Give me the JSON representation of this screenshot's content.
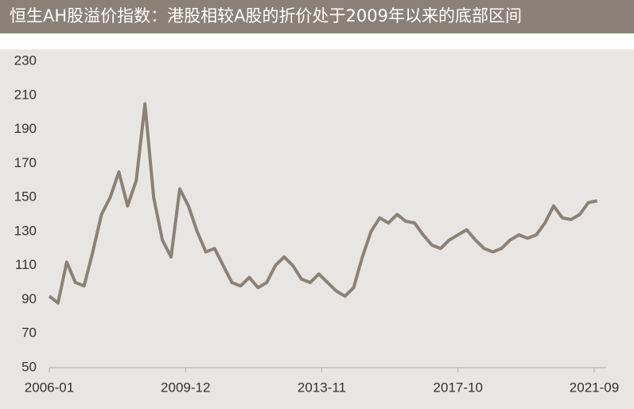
{
  "chart_data": {
    "type": "line",
    "title": "恒生AH股溢价指数：港股相较A股的折价处于2009年以来的底部区间",
    "x": [
      "2006-01",
      "2006-04",
      "2006-07",
      "2006-10",
      "2007-01",
      "2007-04",
      "2007-07",
      "2007-10",
      "2008-01",
      "2008-04",
      "2008-07",
      "2008-10",
      "2009-01",
      "2009-04",
      "2009-07",
      "2009-10",
      "2010-01",
      "2010-04",
      "2010-07",
      "2010-10",
      "2011-01",
      "2011-04",
      "2011-07",
      "2011-10",
      "2012-01",
      "2012-04",
      "2012-07",
      "2012-10",
      "2013-01",
      "2013-04",
      "2013-07",
      "2013-10",
      "2014-01",
      "2014-04",
      "2014-07",
      "2014-10",
      "2015-01",
      "2015-04",
      "2015-07",
      "2015-10",
      "2016-01",
      "2016-04",
      "2016-07",
      "2016-10",
      "2017-01",
      "2017-04",
      "2017-07",
      "2017-10",
      "2018-01",
      "2018-04",
      "2018-07",
      "2018-10",
      "2019-01",
      "2019-04",
      "2019-07",
      "2019-10",
      "2020-01",
      "2020-04",
      "2020-07",
      "2020-10",
      "2021-01",
      "2021-04",
      "2021-07",
      "2021-10"
    ],
    "series": [
      {
        "name": "恒生AH股溢价指数",
        "color": "#8b8177",
        "values": [
          92,
          88,
          112,
          100,
          98,
          118,
          140,
          150,
          165,
          145,
          160,
          205,
          150,
          125,
          115,
          155,
          145,
          130,
          118,
          120,
          110,
          100,
          98,
          103,
          97,
          100,
          110,
          115,
          110,
          102,
          100,
          105,
          100,
          95,
          92,
          97,
          115,
          130,
          138,
          135,
          140,
          136,
          135,
          128,
          122,
          120,
          125,
          128,
          131,
          125,
          120,
          118,
          120,
          125,
          128,
          126,
          128,
          135,
          145,
          138,
          137,
          140,
          147,
          148
        ]
      }
    ],
    "ylim": [
      50,
      230
    ],
    "yticks": [
      50,
      70,
      90,
      110,
      130,
      150,
      170,
      190,
      210,
      230
    ],
    "xticks": [
      "2006-01",
      "2009-12",
      "2013-11",
      "2017-10",
      "2021-09"
    ],
    "grid": false
  }
}
